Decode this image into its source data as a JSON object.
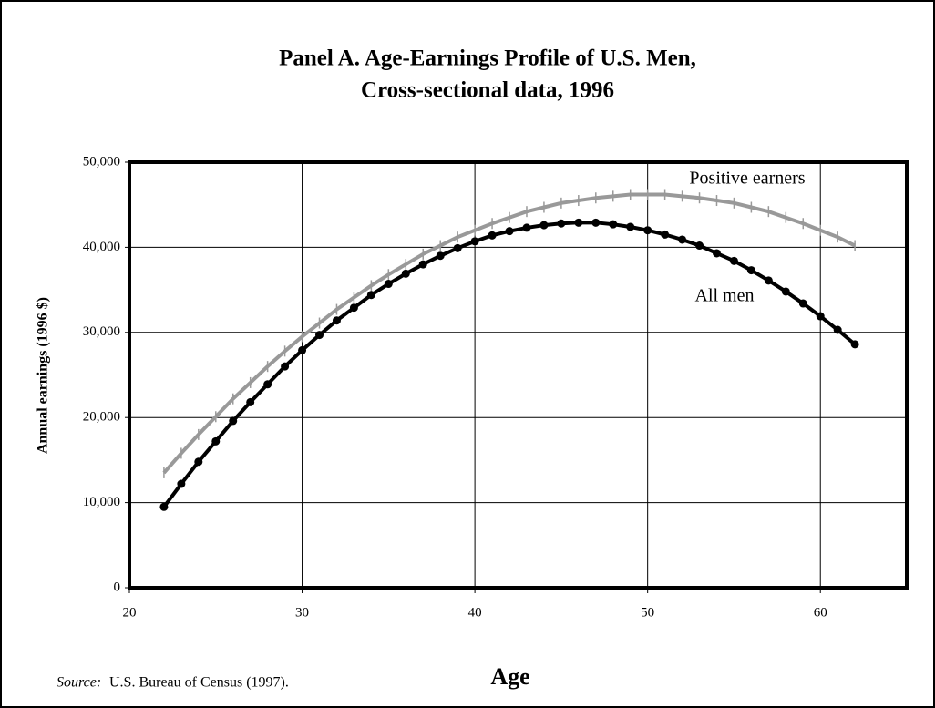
{
  "chart_data": {
    "type": "line",
    "title": "Panel A.  Age-Earnings Profile of U.S. Men,",
    "subtitle": "Cross-sectional data, 1996",
    "x_label": "Age",
    "y_label": "Annual earnings (1996 $)",
    "source_label": "Source:",
    "source": "U.S. Bureau of Census (1997).",
    "x": [
      22,
      23,
      24,
      25,
      26,
      27,
      28,
      29,
      30,
      31,
      32,
      33,
      34,
      35,
      36,
      37,
      38,
      39,
      40,
      41,
      42,
      43,
      44,
      45,
      46,
      47,
      48,
      49,
      50,
      51,
      52,
      53,
      54,
      55,
      56,
      57,
      58,
      59,
      60,
      61,
      62
    ],
    "series": [
      {
        "name": "Positive earners",
        "color": "#999999",
        "marker": "dash",
        "values": [
          13500,
          15800,
          18000,
          20100,
          22200,
          24100,
          26000,
          27800,
          29500,
          31100,
          32700,
          34100,
          35500,
          36800,
          38000,
          39200,
          40200,
          41200,
          42000,
          42800,
          43500,
          44200,
          44700,
          45200,
          45500,
          45800,
          46000,
          46200,
          46200,
          46200,
          46000,
          45800,
          45500,
          45200,
          44700,
          44200,
          43500,
          42800,
          42000,
          41200,
          40200
        ]
      },
      {
        "name": "All men",
        "color": "#000000",
        "marker": "dot",
        "values": [
          9500,
          12200,
          14800,
          17200,
          19600,
          21800,
          23900,
          26000,
          27900,
          29700,
          31400,
          32900,
          34400,
          35700,
          36900,
          38000,
          39000,
          39900,
          40700,
          41400,
          41900,
          42300,
          42600,
          42800,
          42900,
          42900,
          42700,
          42400,
          42000,
          41500,
          40900,
          40200,
          39300,
          38400,
          37300,
          36100,
          34800,
          33400,
          31900,
          30300,
          28600
        ]
      }
    ],
    "xlim": [
      20,
      65
    ],
    "xticks": [
      20,
      30,
      40,
      50,
      60
    ],
    "ylim": [
      0,
      50000
    ],
    "yticks": [
      0,
      {
        "value": 10000,
        "label": "10,000"
      },
      {
        "value": 20000,
        "label": "20,000"
      },
      {
        "value": 30000,
        "label": "30,000"
      },
      {
        "value": 40000,
        "label": "40,000"
      },
      {
        "value": 50000,
        "label": "50,000"
      }
    ],
    "grid": true
  }
}
